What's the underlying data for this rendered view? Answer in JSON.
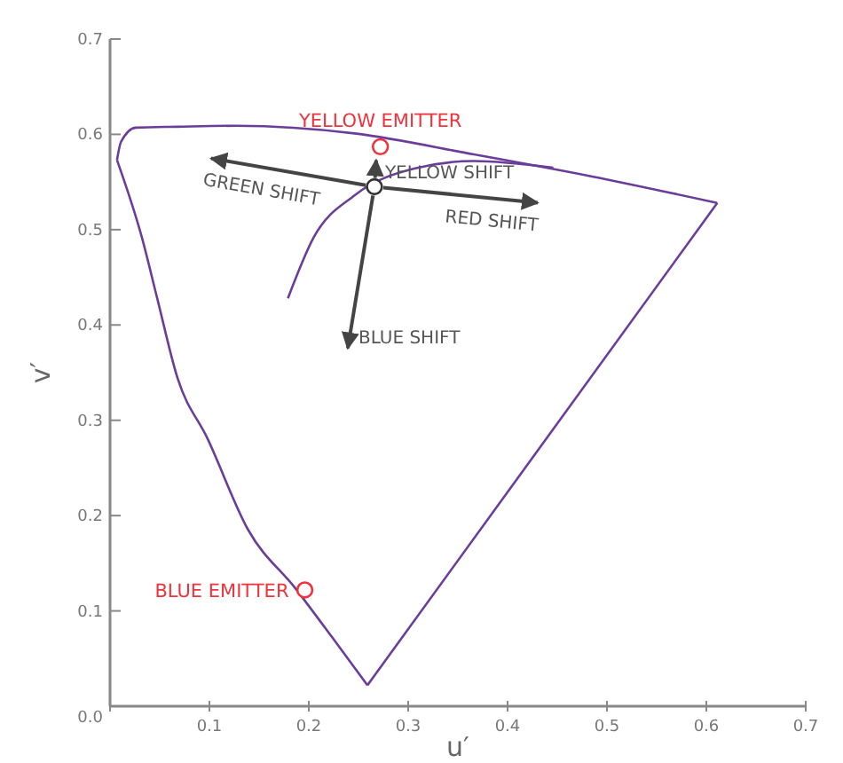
{
  "chart_data": {
    "type": "line",
    "xlabel": "u′",
    "ylabel": "v′",
    "xlim": [
      0,
      0.7
    ],
    "ylim": [
      0,
      0.7
    ],
    "xticks": [
      {
        "value": 0,
        "label": null
      },
      0.1,
      0.2,
      0.3,
      0.4,
      0.5,
      0.6,
      0.7
    ],
    "yticks": [
      {
        "value": 0,
        "label": "0.0"
      },
      0.1,
      0.2,
      0.3,
      0.4,
      0.5,
      0.6,
      0.7
    ],
    "grid": false,
    "legend": false,
    "line_style": "solid",
    "series": [
      {
        "color": "#6a3d9a",
        "marker": "none",
        "x": [
          0.007,
          0.011,
          0.026,
          0.068,
          0.127,
          0.246,
          0.366,
          0.484,
          0.611
        ],
        "values": [
          0.573,
          0.592,
          0.607,
          0.608,
          0.609,
          0.601,
          0.579,
          0.556,
          0.528
        ]
      },
      {
        "color": "#6a3d9a",
        "marker": "none",
        "x": [
          0.007,
          0.032,
          0.047,
          0.068,
          0.098,
          0.139,
          0.187,
          0.223,
          0.259
        ],
        "values": [
          0.573,
          0.492,
          0.43,
          0.344,
          0.281,
          0.185,
          0.123,
          0.073,
          0.022
        ]
      },
      {
        "color": "#6a3d9a",
        "marker": "none",
        "x": [
          0.259,
          0.611
        ],
        "values": [
          0.022,
          0.528
        ]
      },
      {
        "color": "#6a3d9a",
        "marker": "none",
        "x": [
          0.179,
          0.205,
          0.246,
          0.306,
          0.366,
          0.446
        ],
        "values": [
          0.428,
          0.492,
          0.536,
          0.564,
          0.572,
          0.565
        ]
      },
      {
        "type": "scatter",
        "color": "#333333",
        "marker": "circle",
        "x": [
          0.266
        ],
        "values": [
          0.545
        ]
      },
      {
        "type": "scatter",
        "name": "YELLOW EMITTER",
        "color": "#f0323c",
        "marker": "circle",
        "x": [
          0.272
        ],
        "values": [
          0.587
        ]
      },
      {
        "type": "scatter",
        "name": "BLUE EMITTER",
        "color": "#f0323c",
        "marker": "circle",
        "x": [
          0.196
        ],
        "values": [
          0.122
        ]
      }
    ],
    "annotations": [
      "GREEN SHIFT",
      "YELLOW SHIFT",
      "RED SHIFT",
      "BLUE SHIFT"
    ]
  }
}
